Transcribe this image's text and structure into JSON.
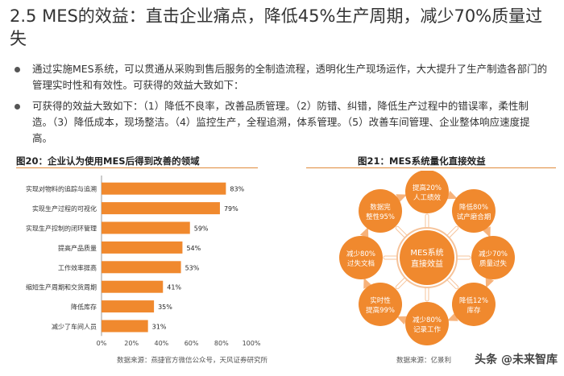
{
  "page": {
    "title": "2.5 MES的效益：直击企业痛点，降低45%生产周期，减少70%质量过失",
    "bullets": [
      "通过实施MES系统，可以贯通从采购到售后服务的全制造流程，透明化生产现场运作，大大提升了生产制造各部门的管理实时性和有效性。可获得的效益大致如下：",
      "可获得的效益大致如下：（1）降低不良率，改善品质管理。（2）防错、纠错，降低生产过程中的错误率，柔性制造。（3）降低成本，现场整洁。（4）监控生产，全程追溯，体系管理。（5）改善车间管理、企业整体响应速度提高。"
    ]
  },
  "figure20": {
    "title": "图20：企业认为使用MES后得到改善的领域",
    "source": "数据来源：燕捷官方微信公众号，天风证券研究所"
  },
  "chart_data": {
    "type": "bar",
    "orientation": "horizontal",
    "categories": [
      "实现对物料的追踪与追溯",
      "实现生产过程的可视化",
      "实现生产控制的闭环管理",
      "提高产品质量",
      "工作效率提高",
      "缩短生产周期和交货周期",
      "降低库存",
      "减少了车间人员"
    ],
    "values": [
      83,
      79,
      59,
      54,
      53,
      41,
      35,
      31
    ],
    "value_labels": [
      "83%",
      "79%",
      "59%",
      "54%",
      "53%",
      "41%",
      "35%",
      "31%"
    ],
    "xlim": [
      0,
      100
    ],
    "xticks": [
      "0%",
      "20%",
      "40%",
      "60%",
      "80%",
      "100%"
    ],
    "bar_color": "#f0892e"
  },
  "figure21": {
    "title": "图21：MES系统量化直接效益",
    "center": [
      "MES系统",
      "直接效益"
    ],
    "items": [
      [
        "提高20%",
        "人工绩效"
      ],
      [
        "降低80%",
        "试产磨合期"
      ],
      [
        "减少70%",
        "质量过失"
      ],
      [
        "降低12%",
        "库存"
      ],
      [
        "减少80%",
        "记录工作"
      ],
      [
        "实时性",
        "提高99%"
      ],
      [
        "减少80%",
        "过失文档"
      ],
      [
        "数据完",
        "整性95%"
      ]
    ],
    "source": "数据来源：亿景利",
    "colors": {
      "fill": "#f0892e",
      "ring": "#f6c39a",
      "arrow": "#f7b27a"
    }
  },
  "watermark": "头条 @未来智库"
}
